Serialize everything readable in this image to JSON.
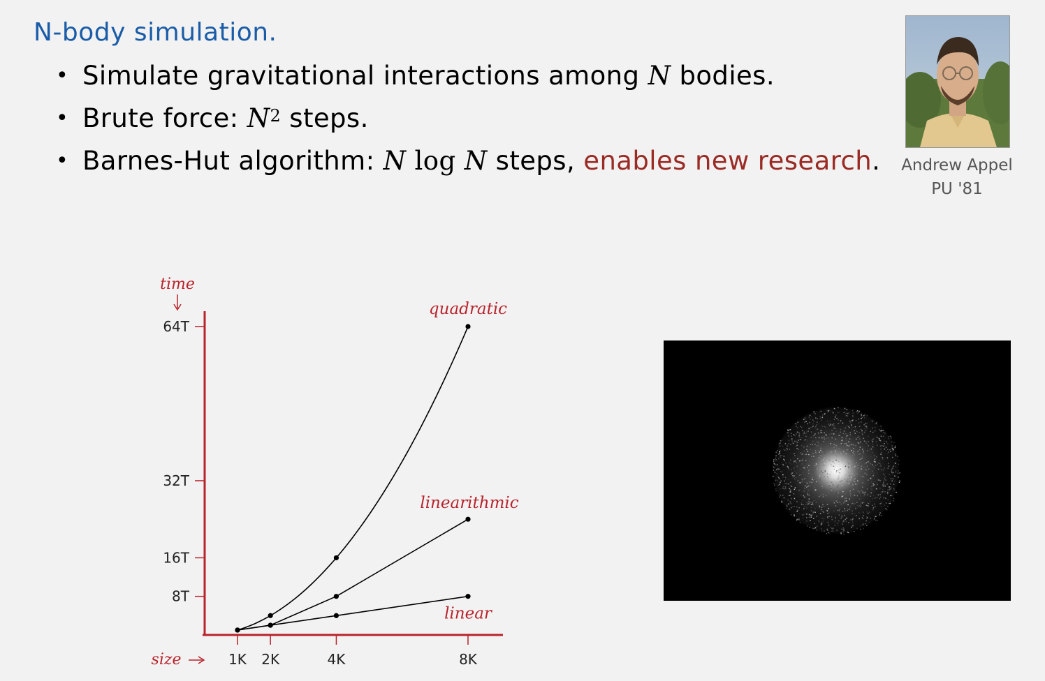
{
  "title": "N-body simulation.",
  "bullets": [
    {
      "text_a": "Simulate gravitational interactions among ",
      "math_a": "N",
      "text_b": " bodies."
    },
    {
      "text_a": "Brute force:  ",
      "math_a": "N",
      "sup": "2",
      "text_b": " steps."
    },
    {
      "text_a": "Barnes-Hut algorithm:  ",
      "math_a": "N",
      "math_log": " log ",
      "math_b": "N",
      "text_b": " steps, ",
      "highlight": "enables new research",
      "text_c": "."
    }
  ],
  "person": {
    "name": "Andrew Appel",
    "class": "PU '81"
  },
  "colors": {
    "title": "#1a5ca8",
    "accent": "#9a2b24",
    "axis": "#b8232b"
  },
  "chart_data": {
    "type": "line",
    "xlabel": "size",
    "ylabel": "time",
    "x_tick_labels": [
      "1K",
      "2K",
      "4K",
      "8K"
    ],
    "x": [
      1,
      2,
      4,
      8
    ],
    "y_tick_labels": [
      "8T",
      "16T",
      "32T",
      "64T"
    ],
    "y_ticks": [
      8,
      16,
      32,
      64
    ],
    "series": [
      {
        "name": "quadratic",
        "values": [
          1,
          4,
          16,
          64
        ]
      },
      {
        "name": "linearithmic",
        "values": [
          1,
          2,
          8,
          24
        ]
      },
      {
        "name": "linear",
        "values": [
          1,
          2,
          4,
          8
        ]
      }
    ]
  }
}
